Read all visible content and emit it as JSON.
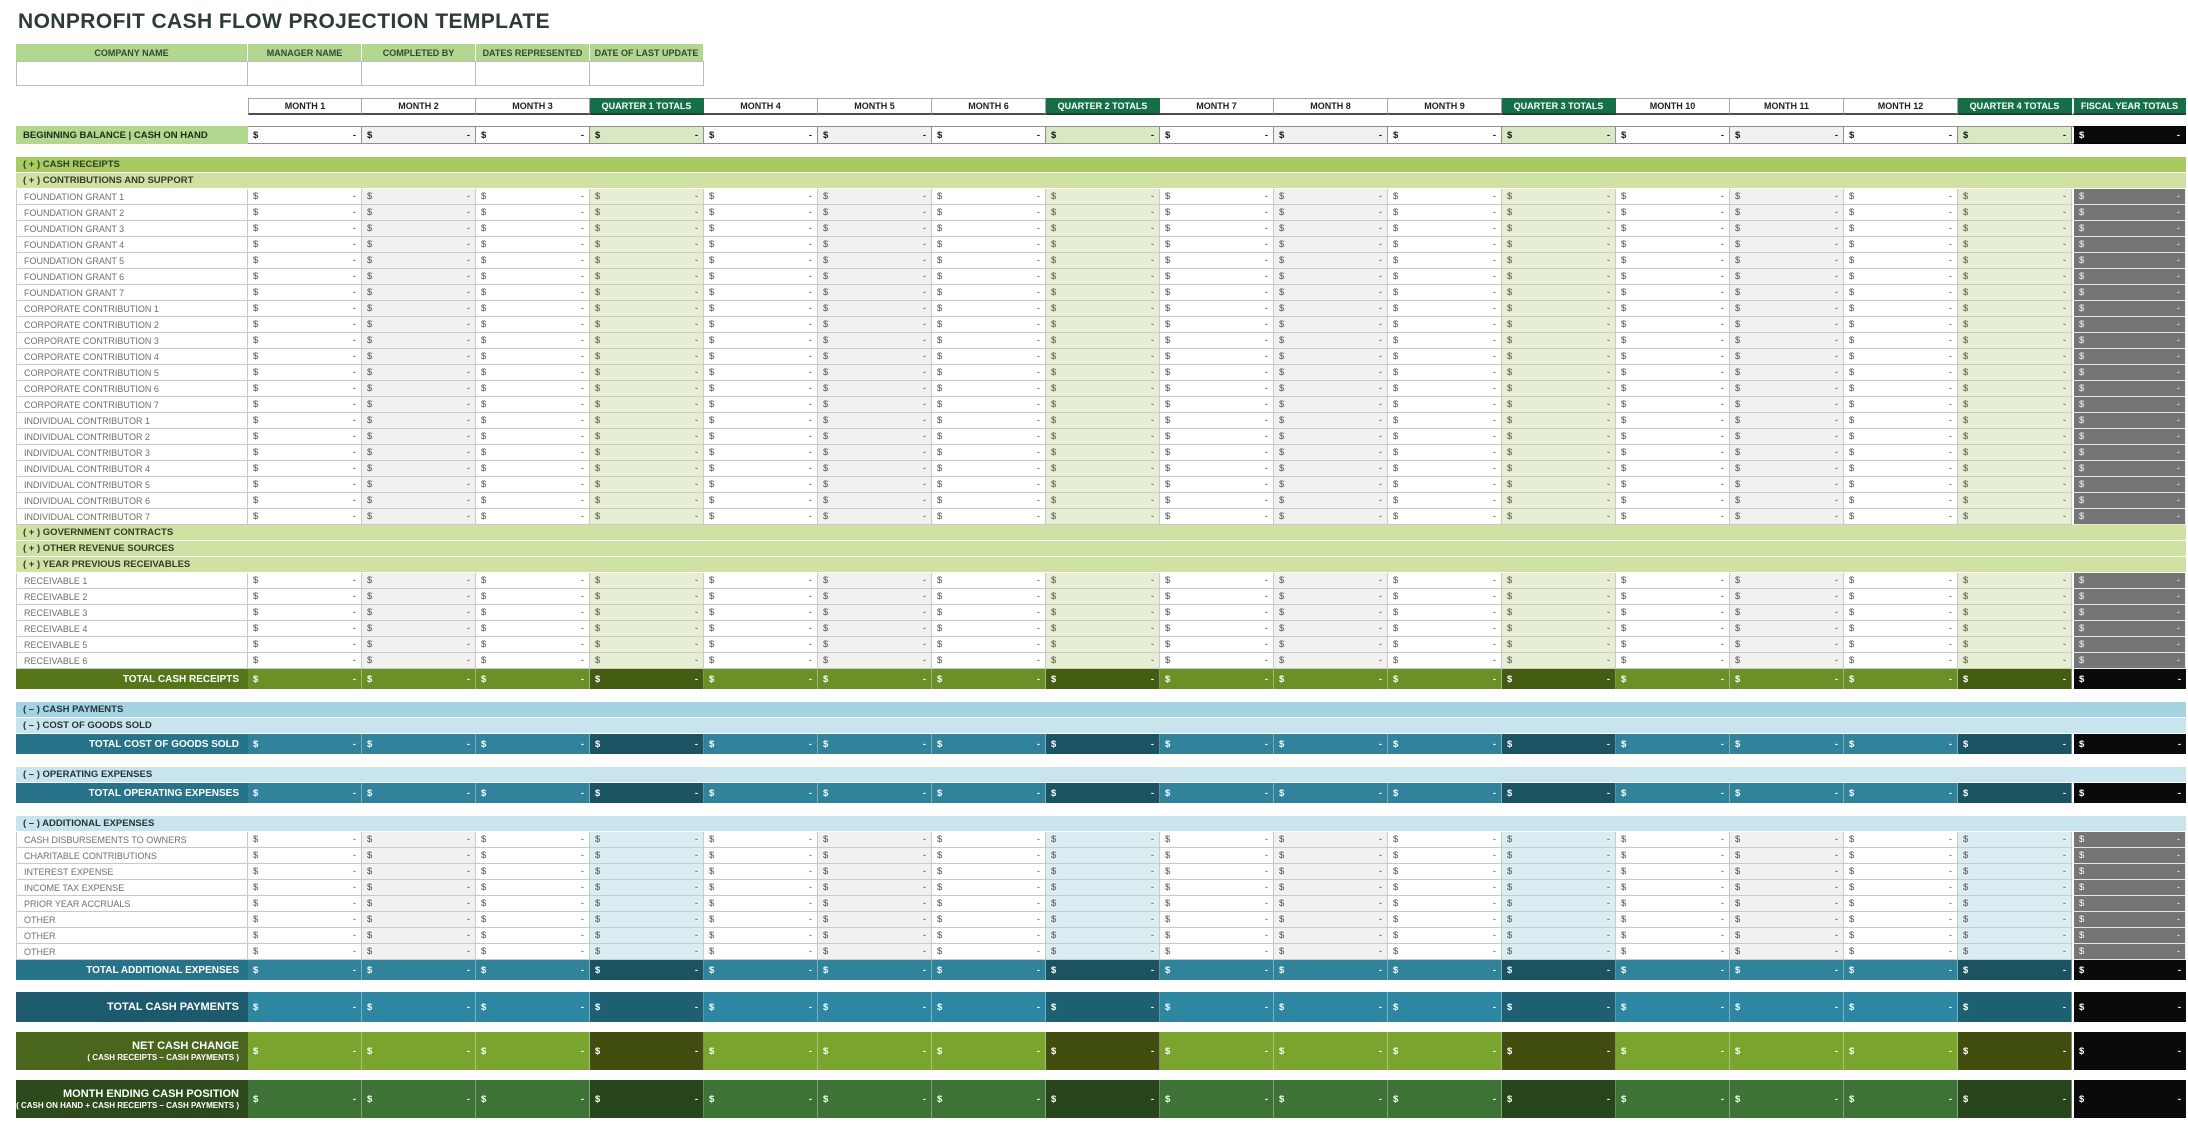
{
  "title": "NONPROFIT CASH FLOW PROJECTION TEMPLATE",
  "info_table": {
    "headers": [
      "COMPANY NAME",
      "MANAGER NAME",
      "COMPLETED BY",
      "DATES REPRESENTED",
      "DATE OF LAST UPDATE"
    ],
    "values": [
      "",
      "",
      "",
      "",
      ""
    ]
  },
  "columns": [
    "MONTH 1",
    "MONTH 2",
    "MONTH 3",
    "QUARTER 1 TOTALS",
    "MONTH 4",
    "MONTH 5",
    "MONTH 6",
    "QUARTER 2 TOTALS",
    "MONTH 7",
    "MONTH 8",
    "MONTH 9",
    "QUARTER 3 TOTALS",
    "MONTH 10",
    "MONTH 11",
    "MONTH 12",
    "QUARTER 4 TOTALS",
    "FISCAL YEAR TOTALS"
  ],
  "cell": {
    "currency": "$",
    "empty_value": "-"
  },
  "rows": [
    {
      "type": "gap",
      "h": 11
    },
    {
      "type": "balance",
      "label": "BEGINNING BALANCE | CASH ON HAND"
    },
    {
      "type": "gap",
      "h": 13
    },
    {
      "type": "banner",
      "style": "lime-main",
      "label": "( + )  CASH RECEIPTS"
    },
    {
      "type": "banner",
      "style": "lime-sub",
      "label": "( + )  CONTRIBUTIONS AND SUPPORT"
    },
    {
      "type": "detail",
      "section": "green",
      "label": "FOUNDATION GRANT 1"
    },
    {
      "type": "detail",
      "section": "green",
      "label": "FOUNDATION GRANT 2"
    },
    {
      "type": "detail",
      "section": "green",
      "label": "FOUNDATION GRANT 3"
    },
    {
      "type": "detail",
      "section": "green",
      "label": "FOUNDATION GRANT 4"
    },
    {
      "type": "detail",
      "section": "green",
      "label": "FOUNDATION GRANT 5"
    },
    {
      "type": "detail",
      "section": "green",
      "label": "FOUNDATION GRANT 6"
    },
    {
      "type": "detail",
      "section": "green",
      "label": "FOUNDATION GRANT 7"
    },
    {
      "type": "detail",
      "section": "green",
      "label": "CORPORATE CONTRIBUTION 1"
    },
    {
      "type": "detail",
      "section": "green",
      "label": "CORPORATE CONTRIBUTION 2"
    },
    {
      "type": "detail",
      "section": "green",
      "label": "CORPORATE CONTRIBUTION 3"
    },
    {
      "type": "detail",
      "section": "green",
      "label": "CORPORATE CONTRIBUTION 4"
    },
    {
      "type": "detail",
      "section": "green",
      "label": "CORPORATE CONTRIBUTION 5"
    },
    {
      "type": "detail",
      "section": "green",
      "label": "CORPORATE CONTRIBUTION 6"
    },
    {
      "type": "detail",
      "section": "green",
      "label": "CORPORATE CONTRIBUTION 7"
    },
    {
      "type": "detail",
      "section": "green",
      "label": "INDIVIDUAL CONTRIBUTOR 1"
    },
    {
      "type": "detail",
      "section": "green",
      "label": "INDIVIDUAL CONTRIBUTOR 2"
    },
    {
      "type": "detail",
      "section": "green",
      "label": "INDIVIDUAL CONTRIBUTOR 3"
    },
    {
      "type": "detail",
      "section": "green",
      "label": "INDIVIDUAL CONTRIBUTOR 4"
    },
    {
      "type": "detail",
      "section": "green",
      "label": "INDIVIDUAL CONTRIBUTOR 5"
    },
    {
      "type": "detail",
      "section": "green",
      "label": "INDIVIDUAL CONTRIBUTOR 6"
    },
    {
      "type": "detail",
      "section": "green",
      "label": "INDIVIDUAL CONTRIBUTOR 7"
    },
    {
      "type": "banner",
      "style": "lime-sub",
      "label": "( + )  GOVERNMENT CONTRACTS"
    },
    {
      "type": "banner",
      "style": "lime-sub",
      "label": "( + )  OTHER REVENUE SOURCES"
    },
    {
      "type": "banner",
      "style": "lime-sub",
      "label": "( + )  YEAR PREVIOUS RECEIVABLES"
    },
    {
      "type": "detail",
      "section": "green",
      "label": "RECEIVABLE 1"
    },
    {
      "type": "detail",
      "section": "green",
      "label": "RECEIVABLE 2"
    },
    {
      "type": "detail",
      "section": "green",
      "label": "RECEIVABLE 3"
    },
    {
      "type": "detail",
      "section": "green",
      "label": "RECEIVABLE 4"
    },
    {
      "type": "detail",
      "section": "green",
      "label": "RECEIVABLE 5"
    },
    {
      "type": "detail",
      "section": "green",
      "label": "RECEIVABLE 6"
    },
    {
      "type": "total",
      "style": "olive",
      "label": "TOTAL CASH RECEIPTS"
    },
    {
      "type": "gap",
      "h": 13
    },
    {
      "type": "banner",
      "style": "blue-main",
      "label": "( – )  CASH PAYMENTS"
    },
    {
      "type": "banner",
      "style": "blue-sub",
      "label": "( – )  COST OF GOODS SOLD"
    },
    {
      "type": "total",
      "style": "teal",
      "label": "TOTAL COST OF GOODS SOLD"
    },
    {
      "type": "gap",
      "h": 13
    },
    {
      "type": "banner",
      "style": "blue-sub",
      "label": "( – )  OPERATING EXPENSES"
    },
    {
      "type": "total",
      "style": "teal",
      "label": "TOTAL OPERATING EXPENSES"
    },
    {
      "type": "gap",
      "h": 13
    },
    {
      "type": "banner",
      "style": "blue-sub",
      "label": "( – )  ADDITIONAL EXPENSES"
    },
    {
      "type": "detail",
      "section": "blue",
      "label": "CASH DISBURSEMENTS TO OWNERS"
    },
    {
      "type": "detail",
      "section": "blue",
      "label": "CHARITABLE CONTRIBUTIONS"
    },
    {
      "type": "detail",
      "section": "blue",
      "label": "INTEREST EXPENSE"
    },
    {
      "type": "detail",
      "section": "blue",
      "label": "INCOME TAX EXPENSE"
    },
    {
      "type": "detail",
      "section": "blue",
      "label": "PRIOR YEAR ACCRUALS"
    },
    {
      "type": "detail",
      "section": "blue",
      "label": "OTHER"
    },
    {
      "type": "detail",
      "section": "blue",
      "label": "OTHER"
    },
    {
      "type": "detail",
      "section": "blue",
      "label": "OTHER"
    },
    {
      "type": "total",
      "style": "teal",
      "label": "TOTAL ADDITIONAL EXPENSES"
    },
    {
      "type": "gap",
      "h": 12
    },
    {
      "type": "total",
      "style": "tcp",
      "label": "TOTAL CASH PAYMENTS"
    },
    {
      "type": "gap",
      "h": 10
    },
    {
      "type": "total",
      "style": "net",
      "label": "NET CASH CHANGE",
      "sublabel": "( CASH RECEIPTS – CASH PAYMENTS )"
    },
    {
      "type": "gap",
      "h": 10
    },
    {
      "type": "total",
      "style": "end",
      "label": "MONTH ENDING CASH POSITION",
      "sublabel": "( CASH ON HAND + CASH RECEIPTS – CASH PAYMENTS )"
    }
  ],
  "colors": {
    "title-text": "#2e3d34",
    "hdr-green": "#156f47",
    "label-green": "#b2d78e",
    "balance-q": "#d9e9c4",
    "lime-main": "#a7cb61",
    "lime-sub": "#cfe2a4",
    "pale-green-q": "#e7efd2",
    "pale-blue-q": "#d9edf3",
    "fy-gray": "#757575",
    "gray-month": "#f1f1ef",
    "black-cell": "#0a0a0a",
    "olive-label": "#567619",
    "olive-month": "#6b9027",
    "olive-q": "#455d12",
    "blue-main": "#a2d4e2",
    "blue-sub": "#c8e5ed",
    "teal-label": "#27748a",
    "teal-month": "#31839b",
    "teal-q": "#1b5363",
    "tcp-label": "#1e5a6d",
    "tcp-month": "#2e87a2",
    "tcp-q": "#1e5f73",
    "net-label": "#4a651c",
    "net-month": "#79a42e",
    "net-q": "#404e10",
    "end-label": "#2c4a1c",
    "end-month": "#3d7334",
    "end-q": "#26451a",
    "detail-text": "#6f6f6f",
    "cell-symbol": "#4d4d4d"
  }
}
